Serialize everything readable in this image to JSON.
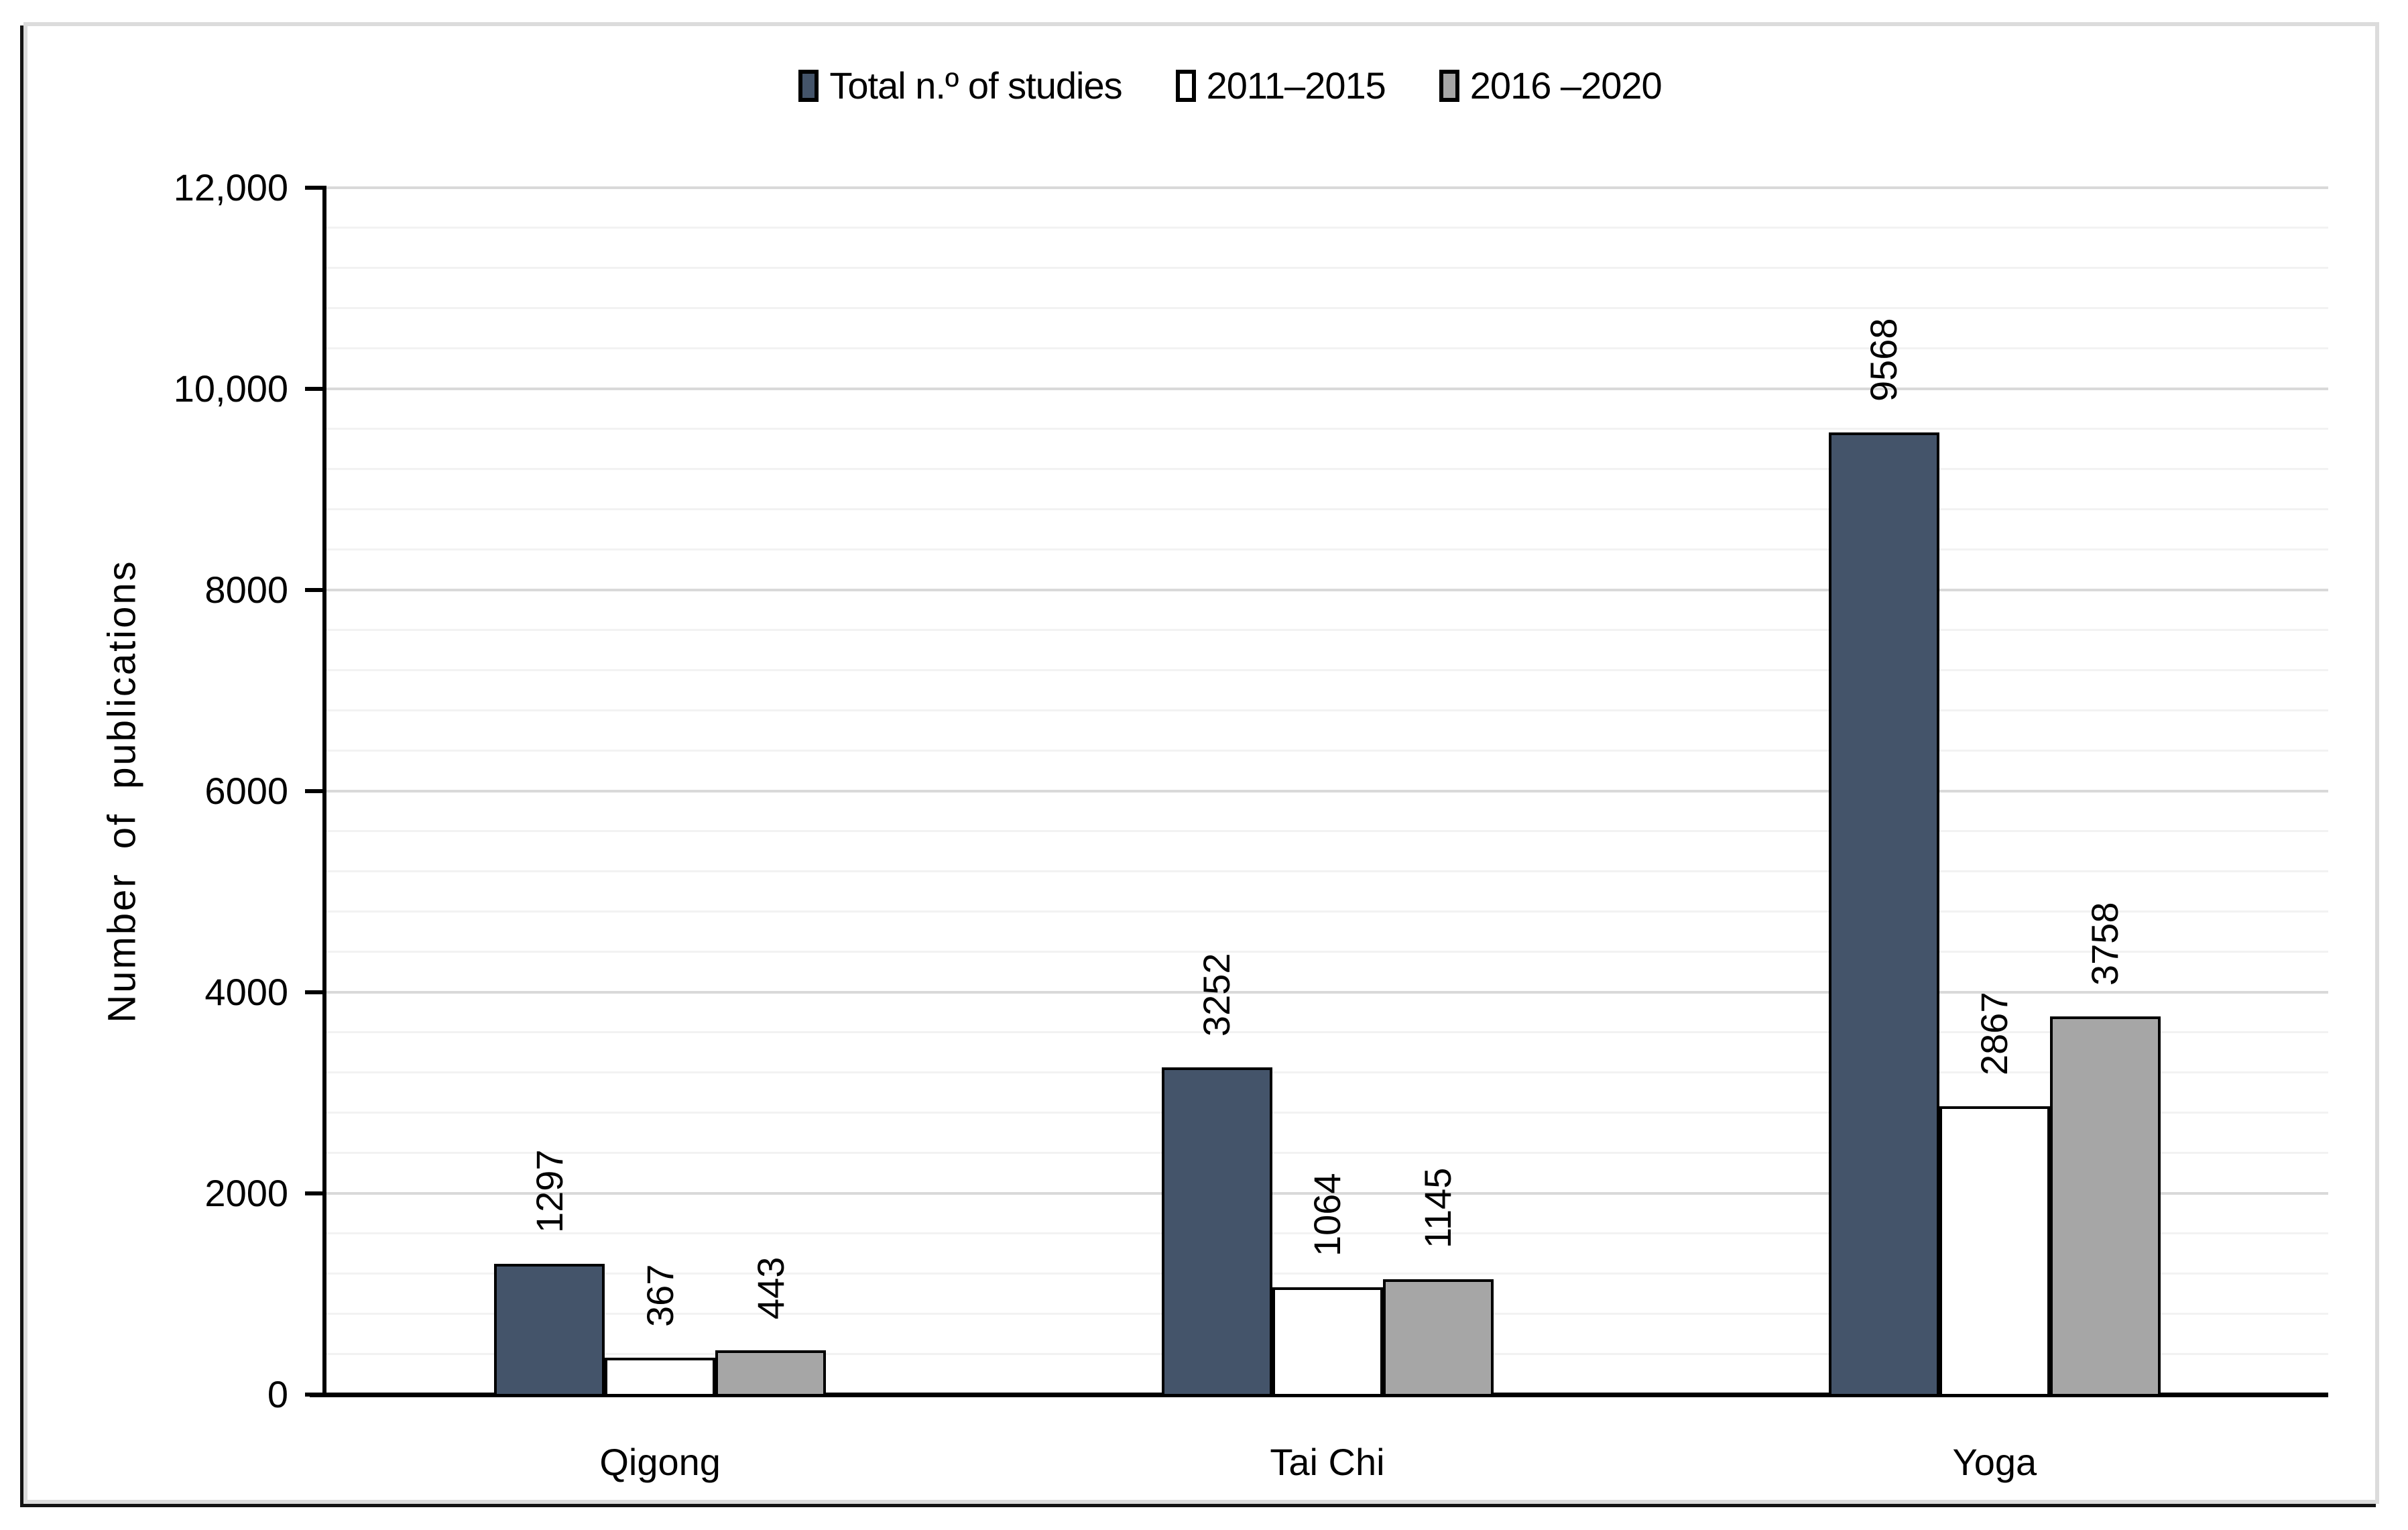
{
  "chart_data": {
    "type": "bar",
    "title": "",
    "categories": [
      "Qigong",
      "Tai Chi",
      "Yoga"
    ],
    "series": [
      {
        "name": "Total n.º of studies",
        "color": "#44546A",
        "values": [
          1297,
          3252,
          9568
        ]
      },
      {
        "name": "2011–2015",
        "color": "#FFFFFF",
        "values": [
          367,
          1064,
          2867
        ]
      },
      {
        "name": "2016 –2020",
        "color": "#A6A6A6",
        "values": [
          443,
          1145,
          3758
        ]
      }
    ],
    "data_labels": [
      [
        "1297",
        "3252",
        "9568"
      ],
      [
        "367",
        "1064",
        "2867"
      ],
      [
        "443",
        "1145",
        "3758"
      ]
    ],
    "ylabel": "Number of publications",
    "xlabel": "",
    "ylim": [
      0,
      12000
    ],
    "y_major_unit": 2000,
    "y_minor_unit": 400,
    "y_tick_labels_top_to_bottom": [
      "12,000",
      "10,000",
      "8000",
      "6000",
      "4000",
      "2000",
      "0"
    ],
    "grid": "horizontal-minor-and-major",
    "legend_position": "top-center",
    "bar_outline_color": "#000000"
  },
  "colors": {
    "minor_gridline": "#f2f2f2",
    "major_gridline": "#d9d9d9",
    "axis": "#000000",
    "figure_border": "#dcdcdc",
    "background": "#ffffff"
  }
}
